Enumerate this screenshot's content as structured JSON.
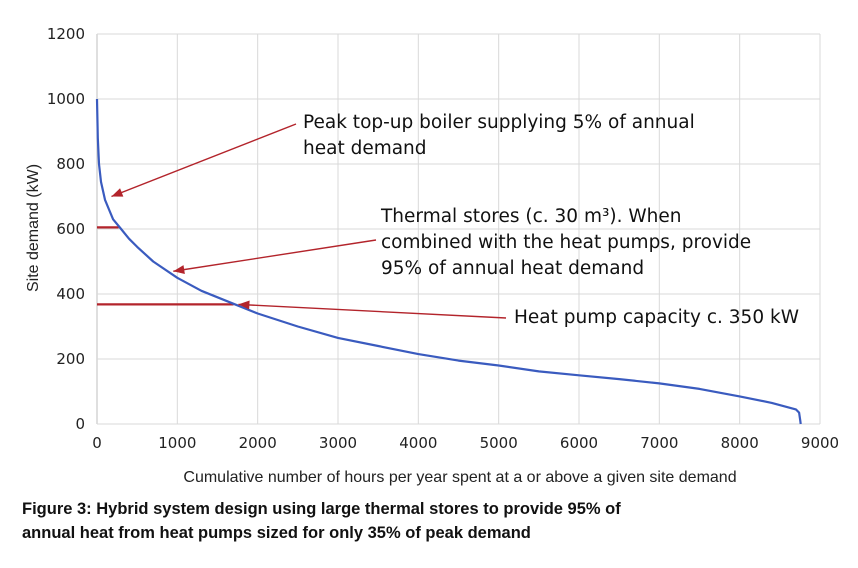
{
  "caption": {
    "line1": "Figure 3: Hybrid system design using large thermal stores to provide 95% of",
    "line2": "annual heat from heat pumps sized for only 35% of peak demand"
  },
  "colors": {
    "curve": "#3a5bbf",
    "marker": "#b3242b",
    "grid": "#d9d9d9",
    "axis": "#bfbfbf"
  },
  "chart_data": {
    "type": "line",
    "title": "",
    "xlabel": "Cumulative number of hours per year spent at a or above a given site demand",
    "ylabel": "Site demand (kW)",
    "xlim": [
      0,
      9000
    ],
    "ylim": [
      0,
      1200
    ],
    "x_ticks": [
      "0",
      "1000",
      "2000",
      "3000",
      "4000",
      "5000",
      "6000",
      "7000",
      "8000",
      "9000"
    ],
    "y_ticks": [
      "0",
      "200",
      "400",
      "600",
      "800",
      "1000",
      "1200"
    ],
    "grid": true,
    "series": [
      {
        "x": [
          0,
          10,
          25,
          50,
          100,
          150,
          200,
          300,
          400,
          500,
          700,
          1000,
          1300,
          1700,
          2000,
          2500,
          3000,
          3500,
          4000,
          4500,
          5000,
          5500,
          6000,
          6500,
          7000,
          7500,
          8000,
          8400,
          8700,
          8740,
          8755,
          8760
        ],
        "y": [
          1000,
          880,
          800,
          745,
          690,
          660,
          630,
          600,
          570,
          545,
          500,
          450,
          410,
          370,
          340,
          300,
          265,
          240,
          215,
          195,
          180,
          162,
          150,
          138,
          125,
          108,
          85,
          65,
          45,
          35,
          10,
          0
        ]
      }
    ],
    "reference_lines": [
      {
        "y": 605,
        "x_end": 270
      },
      {
        "y": 368,
        "x_end": 1700
      }
    ],
    "annotations": [
      {
        "lines": [
          "Peak top-up boiler supplying 5% of annual",
          "heat demand"
        ],
        "target": {
          "x": 180,
          "y": 700
        }
      },
      {
        "lines": [
          "Thermal stores (c. 30 m³). When",
          "combined with the heat pumps, provide",
          "95% of annual heat demand"
        ],
        "target": {
          "x": 950,
          "y": 470
        }
      },
      {
        "lines": [
          "Heat pump capacity c. 350 kW"
        ],
        "target": {
          "x": 1760,
          "y": 368
        }
      }
    ]
  }
}
